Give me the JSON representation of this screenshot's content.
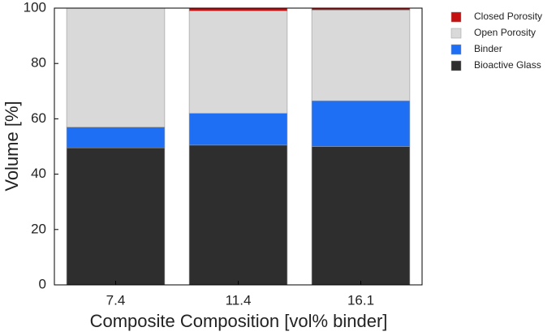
{
  "chart_data": {
    "type": "stacked_bar",
    "x_label": "Composite Composition [vol% binder]",
    "y_label": "Volume [%]",
    "categories": [
      "7.4",
      "11.4",
      "16.1"
    ],
    "series": [
      {
        "name": "Bioactive Glass",
        "color": "#2e2e2e",
        "values": [
          49.5,
          50.5,
          50
        ]
      },
      {
        "name": "Binder",
        "color": "#1f6ff5",
        "values": [
          7.5,
          11.5,
          16.5
        ]
      },
      {
        "name": "Open Porosity",
        "color": "#d9d9d9",
        "values": [
          43,
          37,
          32.8
        ]
      },
      {
        "name": "Closed Porosity",
        "color": "#c41010",
        "values": [
          0,
          1,
          0.7
        ]
      }
    ],
    "ylim": [
      0,
      100
    ],
    "yticks": [
      0,
      20,
      40,
      60,
      80,
      100
    ]
  }
}
